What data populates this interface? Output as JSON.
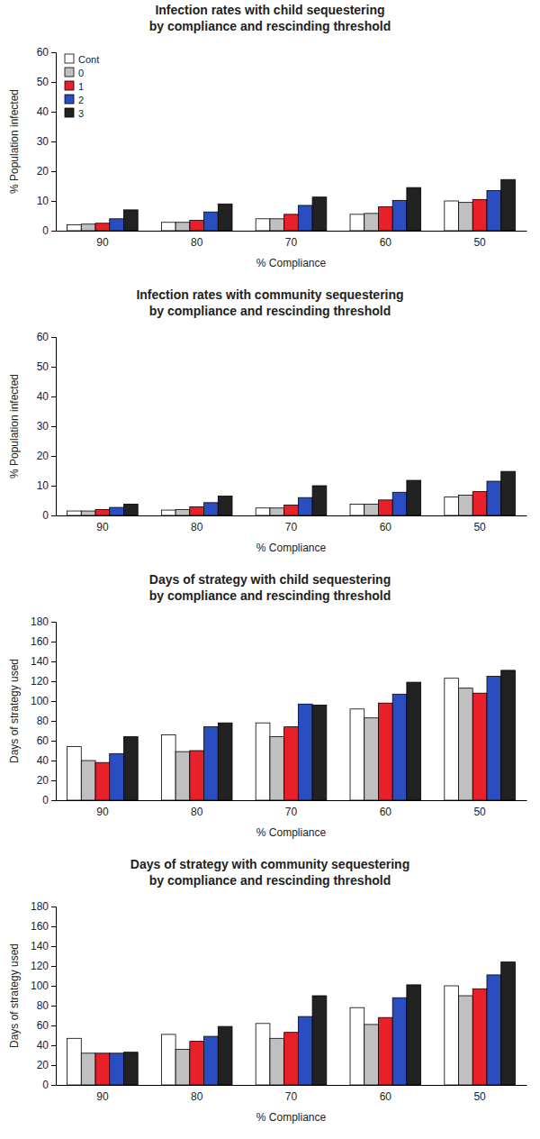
{
  "chart_data": [
    {
      "type": "bar",
      "title": "Infection rates with child sequestering\nby compliance and rescinding threshold",
      "x_label": "% Compliance",
      "y_label": "% Population infected",
      "categories": [
        "90",
        "80",
        "70",
        "60",
        "50"
      ],
      "series": [
        {
          "name": "Cont",
          "color": "#ffffff",
          "values": [
            2,
            2.8,
            4,
            5.5,
            10
          ]
        },
        {
          "name": "0",
          "color": "#c0c0c0",
          "values": [
            2.2,
            2.8,
            4,
            5.8,
            9.5
          ]
        },
        {
          "name": "1",
          "color": "#e8202a",
          "values": [
            2.5,
            3.5,
            5.5,
            8,
            10.5
          ]
        },
        {
          "name": "2",
          "color": "#2a4ebf",
          "values": [
            4,
            6.3,
            8.5,
            10.2,
            13.5
          ]
        },
        {
          "name": "3",
          "color": "#222222",
          "values": [
            7,
            9,
            11.3,
            14.5,
            17.2
          ]
        }
      ],
      "ylim": [
        0,
        60
      ],
      "yticks": [
        0,
        10,
        20,
        30,
        40,
        50,
        60
      ],
      "legend": "top-left"
    },
    {
      "type": "bar",
      "title": "Infection rates with community sequestering\nby compliance and rescinding threshold",
      "x_label": "% Compliance",
      "y_label": "% Population infected",
      "categories": [
        "90",
        "80",
        "70",
        "60",
        "50"
      ],
      "series": [
        {
          "name": "Cont",
          "color": "#ffffff",
          "values": [
            1.5,
            1.8,
            2.5,
            3.8,
            6.2
          ]
        },
        {
          "name": "0",
          "color": "#c0c0c0",
          "values": [
            1.5,
            2,
            2.5,
            3.8,
            6.8
          ]
        },
        {
          "name": "1",
          "color": "#e8202a",
          "values": [
            2,
            2.9,
            3.5,
            5.2,
            8
          ]
        },
        {
          "name": "2",
          "color": "#2a4ebf",
          "values": [
            2.7,
            4.3,
            6,
            7.8,
            11.5
          ]
        },
        {
          "name": "3",
          "color": "#222222",
          "values": [
            3.8,
            6.5,
            10,
            11.8,
            14.8
          ]
        }
      ],
      "ylim": [
        0,
        60
      ],
      "yticks": [
        0,
        10,
        20,
        30,
        40,
        50,
        60
      ]
    },
    {
      "type": "bar",
      "title": "Days of strategy with child sequestering\nby compliance and rescinding threshold",
      "x_label": "% Compliance",
      "y_label": "Days of strategy used",
      "categories": [
        "90",
        "80",
        "70",
        "60",
        "50"
      ],
      "series": [
        {
          "name": "Cont",
          "color": "#ffffff",
          "values": [
            54,
            66,
            78,
            92,
            123
          ]
        },
        {
          "name": "0",
          "color": "#c0c0c0",
          "values": [
            40,
            49,
            64,
            83,
            113
          ]
        },
        {
          "name": "1",
          "color": "#e8202a",
          "values": [
            38,
            50,
            74,
            98,
            108
          ]
        },
        {
          "name": "2",
          "color": "#2a4ebf",
          "values": [
            47,
            74,
            97,
            107,
            125
          ]
        },
        {
          "name": "3",
          "color": "#222222",
          "values": [
            64,
            78,
            96,
            119,
            131
          ]
        }
      ],
      "ylim": [
        0,
        180
      ],
      "yticks": [
        0,
        20,
        40,
        60,
        80,
        100,
        120,
        140,
        160,
        180
      ]
    },
    {
      "type": "bar",
      "title": "Days of strategy with community sequestering\nby compliance and rescinding threshold",
      "x_label": "% Compliance",
      "y_label": "Days of strategy used",
      "categories": [
        "90",
        "80",
        "70",
        "60",
        "50"
      ],
      "series": [
        {
          "name": "Cont",
          "color": "#ffffff",
          "values": [
            47,
            51,
            62,
            78,
            100
          ]
        },
        {
          "name": "0",
          "color": "#c0c0c0",
          "values": [
            32,
            36,
            47,
            61,
            90
          ]
        },
        {
          "name": "1",
          "color": "#e8202a",
          "values": [
            32,
            44,
            53,
            68,
            97
          ]
        },
        {
          "name": "2",
          "color": "#2a4ebf",
          "values": [
            32,
            49,
            69,
            88,
            111
          ]
        },
        {
          "name": "3",
          "color": "#222222",
          "values": [
            33,
            59,
            90,
            101,
            124
          ]
        }
      ],
      "ylim": [
        0,
        180
      ],
      "yticks": [
        0,
        20,
        40,
        60,
        80,
        100,
        120,
        140,
        160,
        180
      ]
    }
  ]
}
